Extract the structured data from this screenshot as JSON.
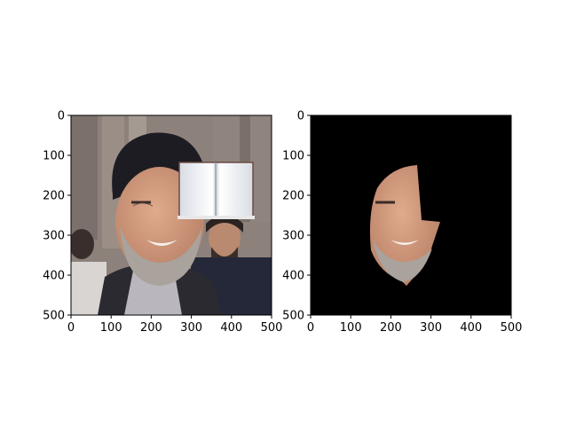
{
  "figure": {
    "panels": [
      {
        "name": "left-panel",
        "content": "photo with an open-book overlay covering the right side of the face"
      },
      {
        "name": "right-panel",
        "content": "segmented face region on a black background"
      }
    ]
  },
  "chart_data": [
    {
      "type": "image",
      "xlim": [
        0,
        500
      ],
      "ylim": [
        500,
        0
      ],
      "x_ticks": [
        0,
        100,
        200,
        300,
        400,
        500
      ],
      "y_ticks": [
        0,
        100,
        200,
        300,
        400,
        500
      ],
      "x_tick_labels": [
        "0",
        "100",
        "200",
        "300",
        "400",
        "500"
      ],
      "y_tick_labels": [
        "0",
        "100",
        "200",
        "300",
        "400",
        "500"
      ],
      "colors": {
        "background_top": "#8a7e78",
        "robe": "#b8b6bc",
        "turban": "#1c1c22",
        "skin": "#c89478",
        "beard": "#a9a29d",
        "book": "#e8ecf0"
      }
    },
    {
      "type": "image",
      "xlim": [
        0,
        500
      ],
      "ylim": [
        500,
        0
      ],
      "x_ticks": [
        0,
        100,
        200,
        300,
        400,
        500
      ],
      "y_ticks": [
        0,
        100,
        200,
        300,
        400,
        500
      ],
      "x_tick_labels": [
        "0",
        "100",
        "200",
        "300",
        "400",
        "500"
      ],
      "y_tick_labels": [
        "0",
        "100",
        "200",
        "300",
        "400",
        "500"
      ],
      "colors": {
        "background": "#000000",
        "skin": "#c89478",
        "beard": "#a9a29d"
      }
    }
  ]
}
